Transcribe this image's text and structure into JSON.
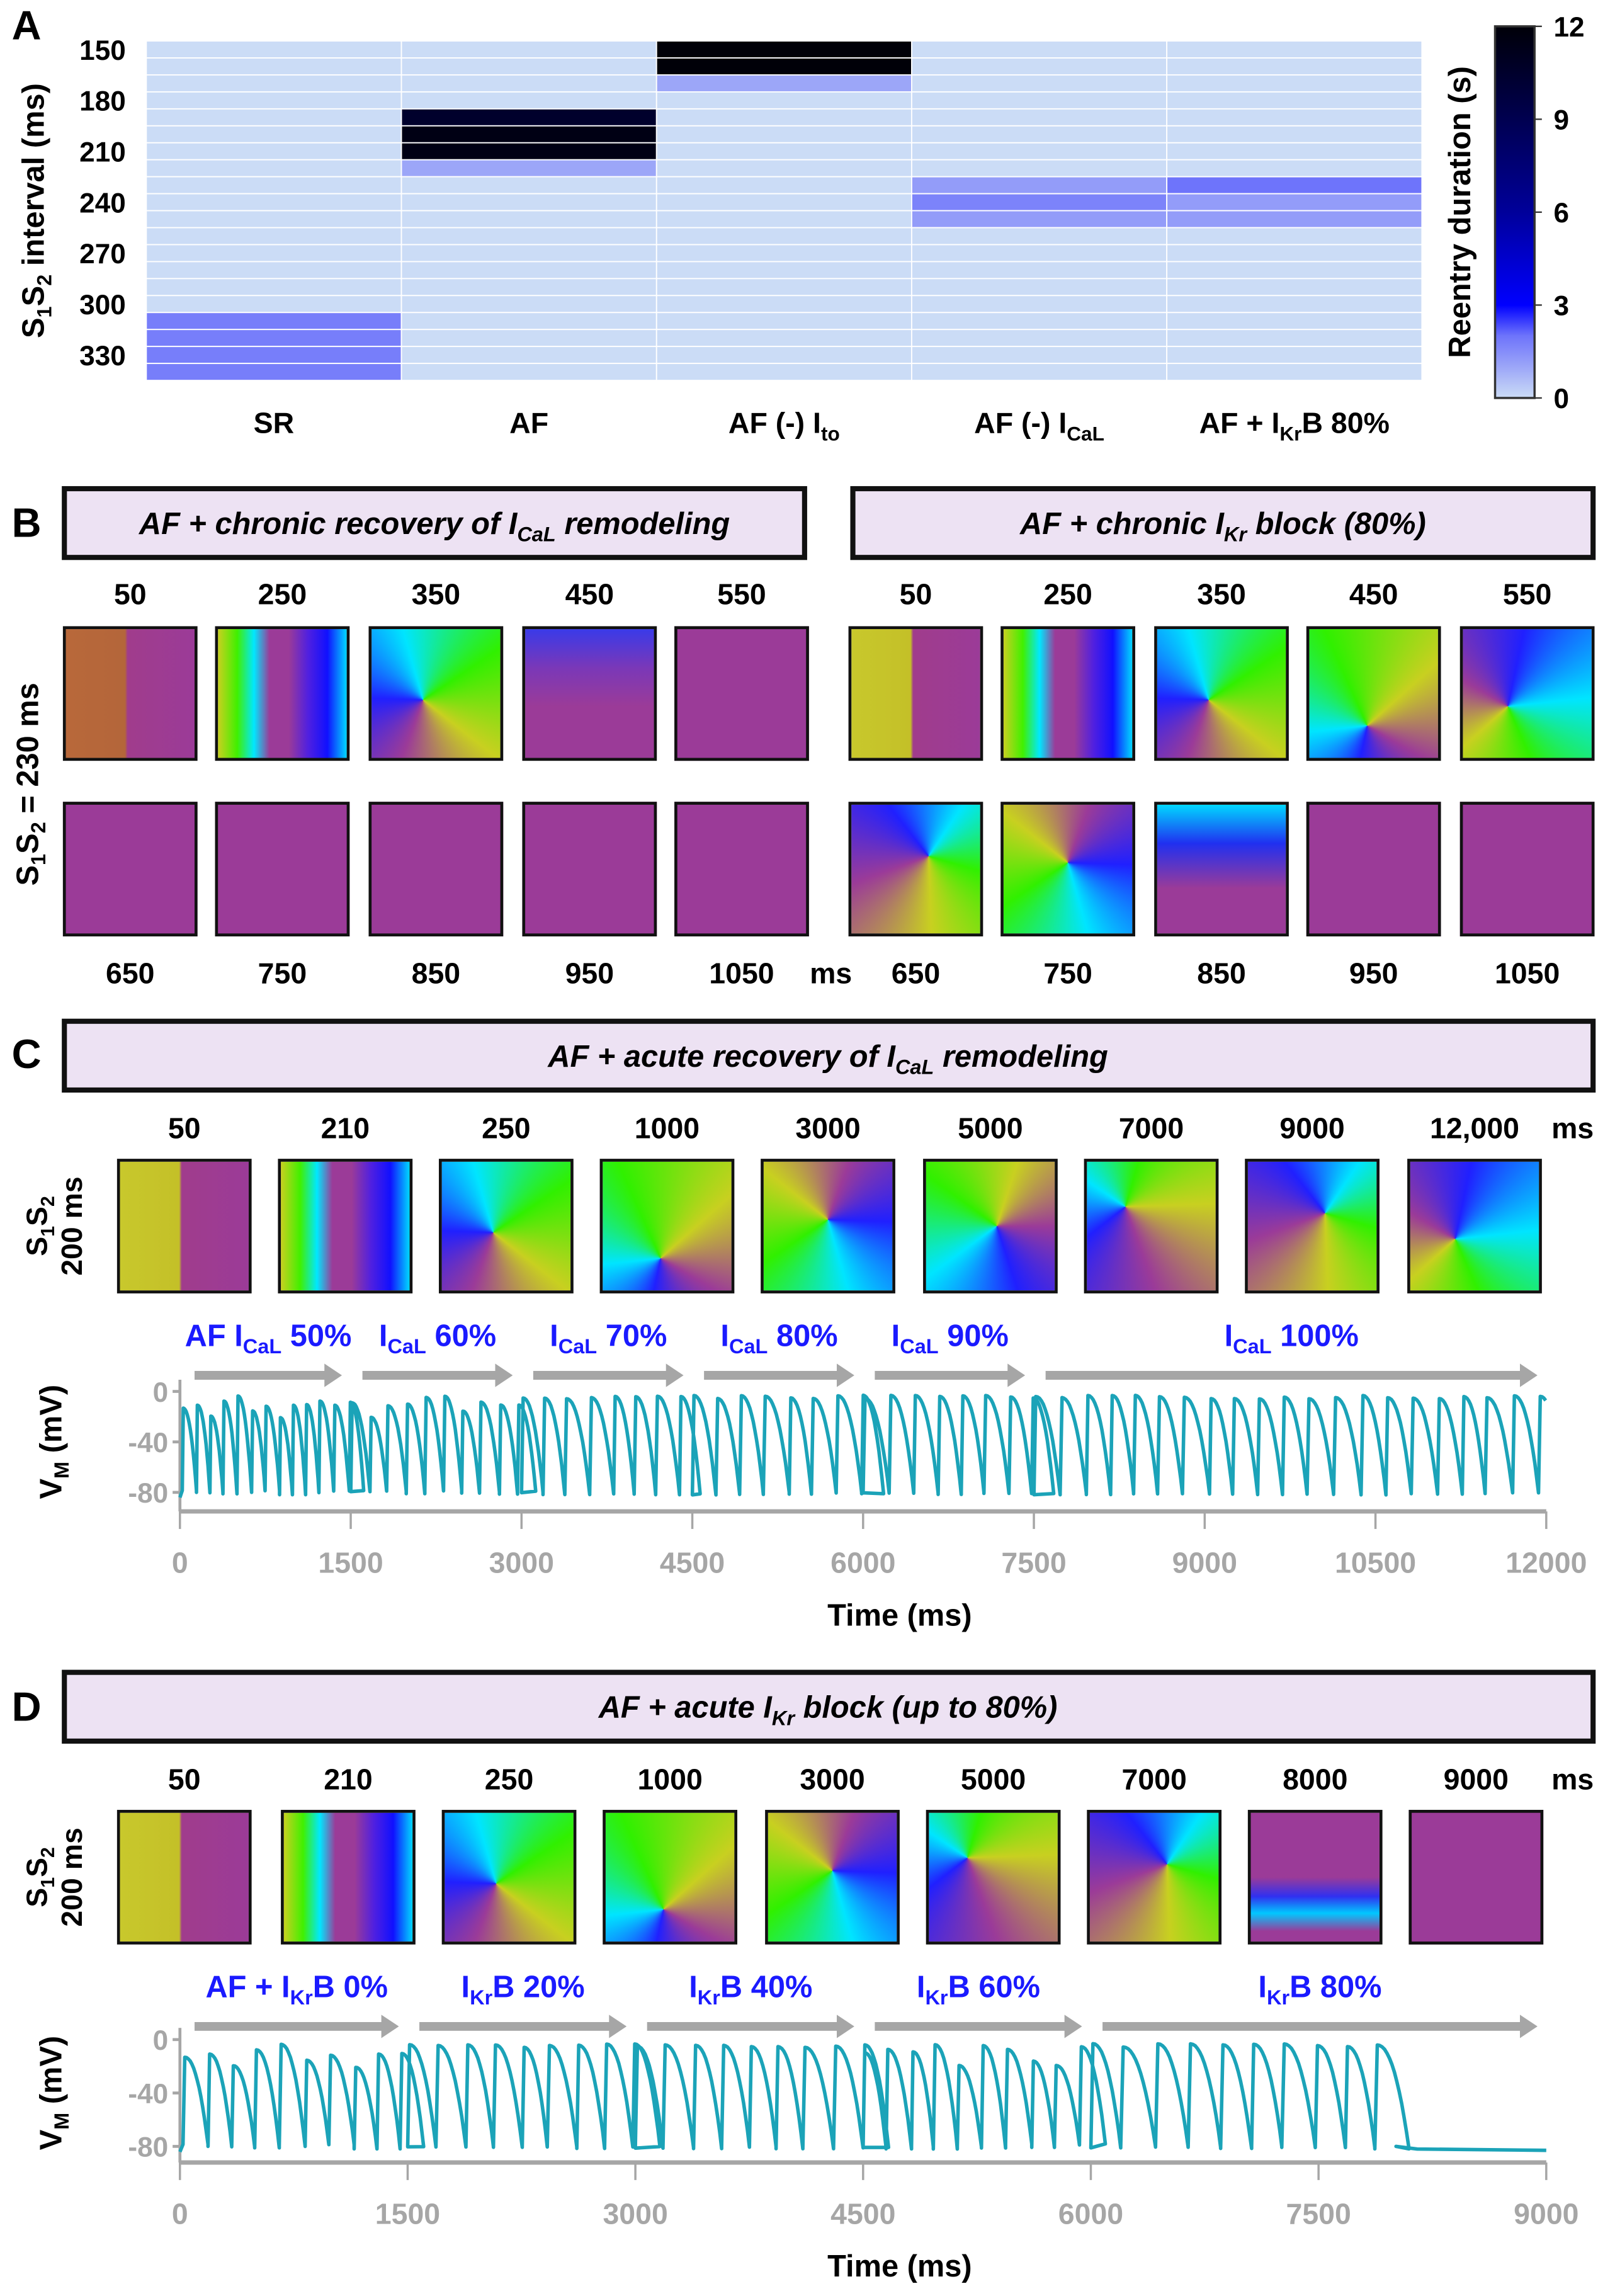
{
  "panel_labels": {
    "a": "A",
    "b": "B",
    "c": "C",
    "d": "D"
  },
  "chart_data": [
    {
      "type": "heatmap",
      "ylabel_parts": [
        "S",
        "1",
        "S",
        "2",
        " interval (ms)"
      ],
      "y_values": [
        150,
        160,
        170,
        180,
        190,
        200,
        210,
        220,
        230,
        240,
        250,
        260,
        270,
        280,
        290,
        300,
        310,
        320,
        330,
        340
      ],
      "y_tick_labels": [
        "150",
        "180",
        "210",
        "240",
        "270",
        "300",
        "330"
      ],
      "columns": [
        {
          "parts": [
            "SR",
            "",
            ""
          ]
        },
        {
          "parts": [
            "AF",
            "",
            ""
          ]
        },
        {
          "parts": [
            "AF (-) I",
            "to",
            ""
          ]
        },
        {
          "parts": [
            "AF (-) I",
            "CaL",
            ""
          ]
        },
        {
          "parts": [
            "AF + I",
            "Kr",
            "B 80%"
          ]
        }
      ],
      "values": [
        [
          0,
          0,
          0,
          0,
          0,
          0,
          0,
          0,
          0,
          0,
          0,
          0,
          0,
          0,
          0,
          0,
          1.8,
          1.8,
          1.8,
          1.8
        ],
        [
          0,
          0,
          0,
          0,
          10.5,
          11.5,
          11.5,
          1.0,
          0,
          0,
          0,
          0,
          0,
          0,
          0,
          0,
          0,
          0,
          0,
          0
        ],
        [
          12,
          12,
          1.0,
          0,
          0,
          0,
          0,
          0,
          0,
          0,
          0,
          0,
          0,
          0,
          0,
          0,
          0,
          0,
          0,
          0
        ],
        [
          0,
          0,
          0,
          0,
          0,
          0,
          0,
          0,
          1.2,
          1.7,
          1.2,
          0,
          0,
          0,
          0,
          0,
          0,
          0,
          0,
          0
        ],
        [
          0,
          0,
          0,
          0,
          0,
          0,
          0,
          0,
          2.0,
          1.2,
          1.2,
          0,
          0,
          0,
          0,
          0,
          0,
          0,
          0,
          0
        ]
      ],
      "colorbar": {
        "title": "Reentry duration (s)",
        "range": [
          0,
          12
        ],
        "ticks": [
          "0",
          "3",
          "6",
          "9",
          "12"
        ]
      }
    },
    {
      "type": "line",
      "ylabel_parts": [
        "V",
        "M",
        " (mV)"
      ],
      "xlabel": "Time (ms)",
      "xlim": [
        0,
        12000
      ],
      "ylim": [
        -80,
        0
      ],
      "x_ticks": [
        "0",
        "1500",
        "3000",
        "4500",
        "6000",
        "7500",
        "9000",
        "10500",
        "12000"
      ],
      "y_ticks": [
        "0",
        "-40",
        "-80"
      ],
      "color": "#1ba3b8",
      "phases": [
        {
          "start": 0,
          "end": 1500,
          "cycle_ms": 125,
          "parts": [
            "AF I",
            "CaL",
            " 50%"
          ]
        },
        {
          "start": 1500,
          "end": 3000,
          "cycle_ms": 160,
          "parts": [
            "I",
            "CaL",
            " 60%"
          ]
        },
        {
          "start": 3000,
          "end": 4500,
          "cycle_ms": 200,
          "parts": [
            "I",
            "CaL",
            " 70%"
          ]
        },
        {
          "start": 4500,
          "end": 6000,
          "cycle_ms": 210,
          "parts": [
            "I",
            "CaL",
            " 80%"
          ]
        },
        {
          "start": 6000,
          "end": 7500,
          "cycle_ms": 215,
          "parts": [
            "I",
            "CaL",
            " 90%"
          ]
        },
        {
          "start": 7500,
          "end": 12000,
          "cycle_ms": 220,
          "parts": [
            "I",
            "CaL",
            " 100%"
          ]
        }
      ]
    },
    {
      "type": "line",
      "ylabel_parts": [
        "V",
        "M",
        " (mV)"
      ],
      "xlabel": "Time (ms)",
      "xlim": [
        0,
        9000
      ],
      "ylim": [
        -80,
        0
      ],
      "x_ticks": [
        "0",
        "1500",
        "3000",
        "4500",
        "6000",
        "7500",
        "9000"
      ],
      "y_ticks": [
        "0",
        "-40",
        "-80"
      ],
      "color": "#1ba3b8",
      "reentry_terminates_ms": 7950,
      "phases": [
        {
          "start": 0,
          "end": 1500,
          "cycle_ms": 165,
          "parts": [
            "AF + I",
            "Kr",
            "B 0%"
          ]
        },
        {
          "start": 1500,
          "end": 3000,
          "cycle_ms": 180,
          "parts": [
            "I",
            "Kr",
            "B 20%"
          ]
        },
        {
          "start": 3000,
          "end": 4500,
          "cycle_ms": 185,
          "parts": [
            "I",
            "Kr",
            "B 40%"
          ]
        },
        {
          "start": 4500,
          "end": 6000,
          "cycle_ms": 160,
          "parts": [
            "I",
            "Kr",
            "B 60%"
          ]
        },
        {
          "start": 6000,
          "end": 9000,
          "cycle_ms": 215,
          "parts": [
            "I",
            "Kr",
            "B 80%"
          ]
        }
      ]
    }
  ],
  "panel_b": {
    "left_title": [
      "AF + chronic recovery of I",
      "CaL",
      " remodeling"
    ],
    "right_title": [
      "AF + chronic I",
      "Kr",
      " block (80%)"
    ],
    "ylabel_parts": [
      "S",
      "1",
      "S",
      "2",
      " = 230 ms"
    ],
    "top_times": [
      "50",
      "250",
      "350",
      "450",
      "550"
    ],
    "bottom_times": [
      "650",
      "750",
      "850",
      "950",
      "1050"
    ],
    "unit": "ms"
  },
  "panel_c": {
    "title": [
      "AF + acute recovery of I",
      "CaL",
      " remodeling"
    ],
    "ylabel_line1": [
      "S",
      "1",
      "S",
      "2"
    ],
    "ylabel_line2": "200 ms",
    "times": [
      "50",
      "210",
      "250",
      "1000",
      "3000",
      "5000",
      "7000",
      "9000",
      "12,000"
    ],
    "unit": "ms"
  },
  "panel_d": {
    "title": [
      "AF + acute I",
      "Kr",
      " block (up to 80%)"
    ],
    "ylabel_line1": [
      "S",
      "1",
      "S",
      "2"
    ],
    "ylabel_line2": "200 ms",
    "times": [
      "50",
      "210",
      "250",
      "1000",
      "3000",
      "5000",
      "7000",
      "8000",
      "9000"
    ],
    "unit": "ms"
  }
}
